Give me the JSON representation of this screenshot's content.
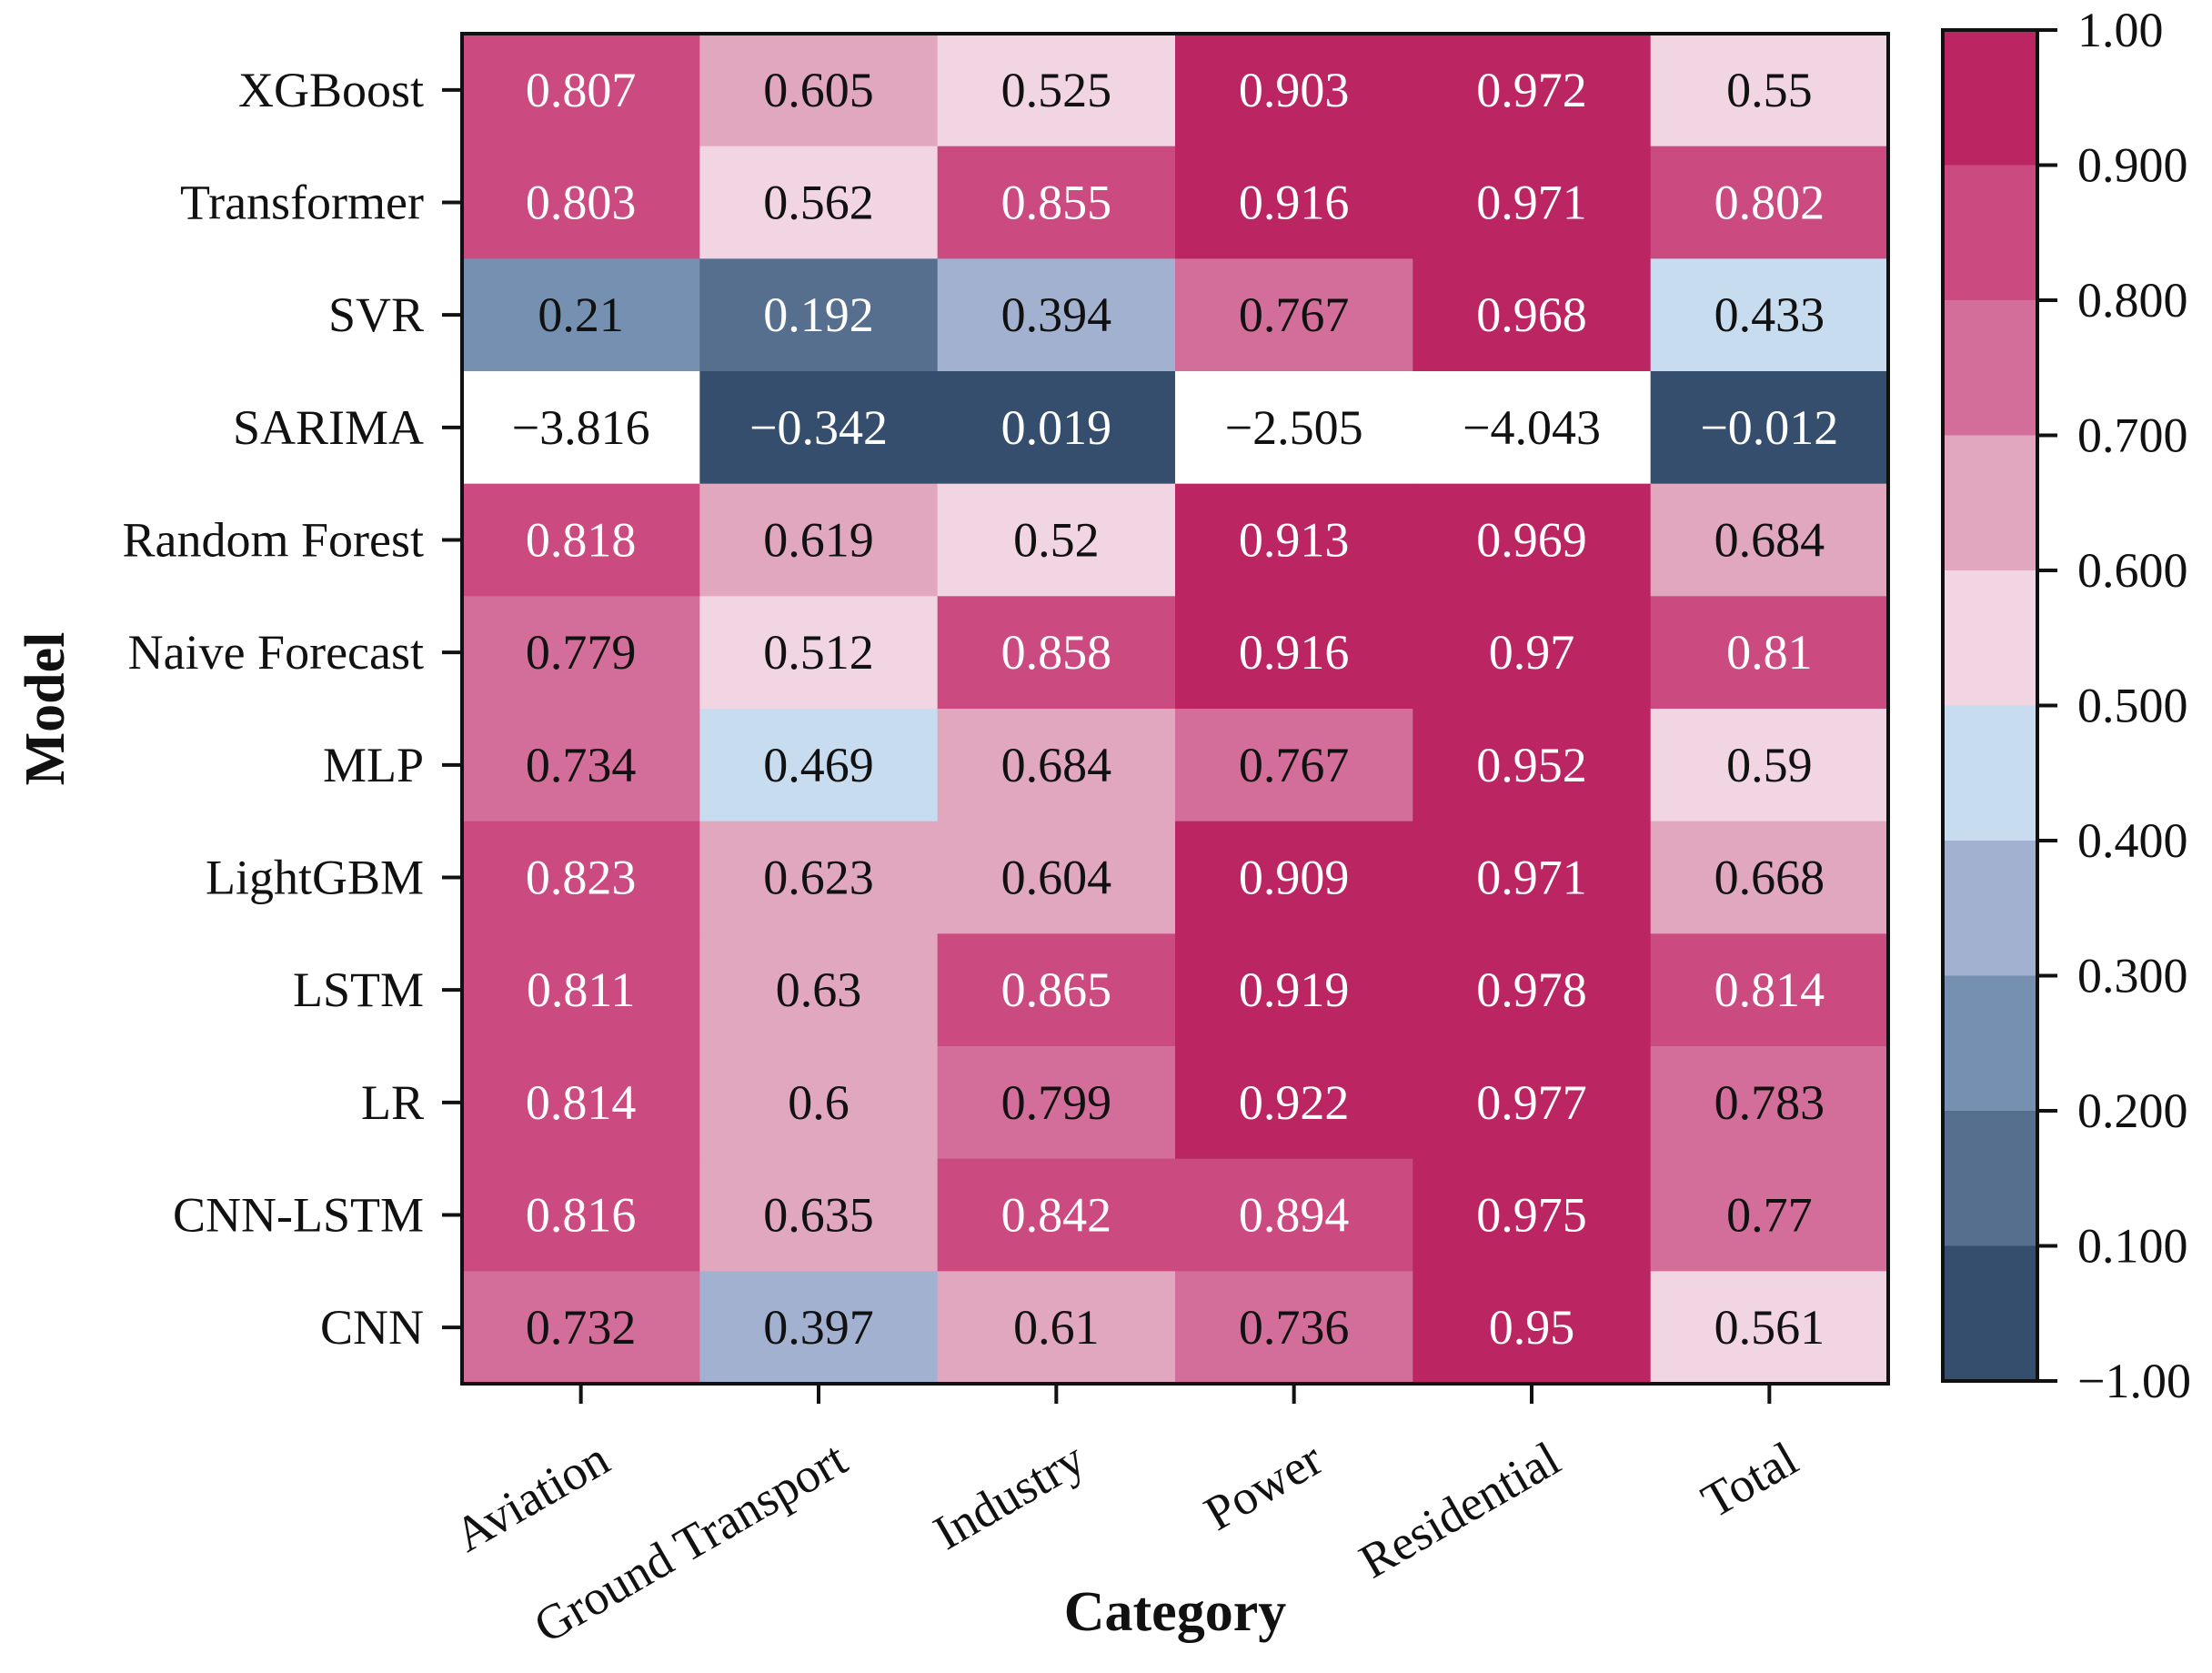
{
  "chart_data": {
    "type": "heatmap",
    "xlabel": "Category",
    "ylabel": "Model",
    "categories": [
      "Aviation",
      "Ground Transport",
      "Industry",
      "Power",
      "Residential",
      "Total"
    ],
    "models": [
      "XGBoost",
      "Transformer",
      "SVR",
      "SARIMA",
      "Random Forest",
      "Naive Forecast",
      "MLP",
      "LightGBM",
      "LSTM",
      "LR",
      "CNN-LSTM",
      "CNN"
    ],
    "values": [
      [
        0.807,
        0.605,
        0.525,
        0.903,
        0.972,
        0.55
      ],
      [
        0.803,
        0.562,
        0.855,
        0.916,
        0.971,
        0.802
      ],
      [
        0.21,
        0.192,
        0.394,
        0.767,
        0.968,
        0.433
      ],
      [
        -3.816,
        -0.342,
        0.019,
        -2.505,
        -4.043,
        -0.012
      ],
      [
        0.818,
        0.619,
        0.52,
        0.913,
        0.969,
        0.684
      ],
      [
        0.779,
        0.512,
        0.858,
        0.916,
        0.97,
        0.81
      ],
      [
        0.734,
        0.469,
        0.684,
        0.767,
        0.952,
        0.59
      ],
      [
        0.823,
        0.623,
        0.604,
        0.909,
        0.971,
        0.668
      ],
      [
        0.811,
        0.63,
        0.865,
        0.919,
        0.978,
        0.814
      ],
      [
        0.814,
        0.6,
        0.799,
        0.922,
        0.977,
        0.783
      ],
      [
        0.816,
        0.635,
        0.842,
        0.894,
        0.975,
        0.77
      ],
      [
        0.732,
        0.397,
        0.61,
        0.736,
        0.95,
        0.561
      ]
    ],
    "cell_labels": [
      [
        "0.807",
        "0.605",
        "0.525",
        "0.903",
        "0.972",
        "0.55"
      ],
      [
        "0.803",
        "0.562",
        "0.855",
        "0.916",
        "0.971",
        "0.802"
      ],
      [
        "0.21",
        "0.192",
        "0.394",
        "0.767",
        "0.968",
        "0.433"
      ],
      [
        "−3.816",
        "−0.342",
        "0.019",
        "−2.505",
        "−4.043",
        "−0.012"
      ],
      [
        "0.818",
        "0.619",
        "0.52",
        "0.913",
        "0.969",
        "0.684"
      ],
      [
        "0.779",
        "0.512",
        "0.858",
        "0.916",
        "0.97",
        "0.81"
      ],
      [
        "0.734",
        "0.469",
        "0.684",
        "0.767",
        "0.952",
        "0.59"
      ],
      [
        "0.823",
        "0.623",
        "0.604",
        "0.909",
        "0.971",
        "0.668"
      ],
      [
        "0.811",
        "0.63",
        "0.865",
        "0.919",
        "0.978",
        "0.814"
      ],
      [
        "0.814",
        "0.6",
        "0.799",
        "0.922",
        "0.977",
        "0.783"
      ],
      [
        "0.816",
        "0.635",
        "0.842",
        "0.894",
        "0.975",
        "0.77"
      ],
      [
        "0.732",
        "0.397",
        "0.61",
        "0.736",
        "0.95",
        "0.561"
      ]
    ],
    "colorbar": {
      "tick_labels": [
        "1.00",
        "0.900",
        "0.800",
        "0.700",
        "0.600",
        "0.500",
        "0.400",
        "0.300",
        "0.200",
        "0.100",
        "−1.00"
      ],
      "bands_top_to_bottom": [
        "#ba2562",
        "#cb4a80",
        "#d36d99",
        "#e0a7bf",
        "#f2d5e2",
        "#c7dcef",
        "#a1b1cf",
        "#7590b0",
        "#566f8f",
        "#354e6d"
      ],
      "below_min_color": "#ffffff",
      "band_min_values_top_to_bottom": [
        0.9,
        0.8,
        0.7,
        0.6,
        0.5,
        0.4,
        0.3,
        0.2,
        0.1,
        -1.0
      ],
      "dark_text_bands": [
        2,
        3,
        4,
        5,
        6,
        7
      ],
      "range": [
        -1.0,
        1.0
      ]
    }
  }
}
